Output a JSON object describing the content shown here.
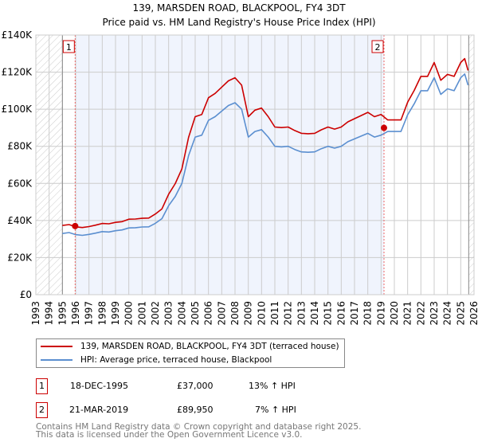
{
  "title_line1": "139, MARSDEN ROAD, BLACKPOOL, FY4 3DT",
  "title_line2": "Price paid vs. HM Land Registry's House Price Index (HPI)",
  "chart_data": {
    "type": "line",
    "title": "139, MARSDEN ROAD, BLACKPOOL, FY4 3DT — Price paid vs. HM Land Registry's House Price Index (HPI)",
    "xlim": [
      1993,
      2026
    ],
    "ylim": [
      0,
      140000
    ],
    "yticks": [
      0,
      20000,
      40000,
      60000,
      80000,
      100000,
      120000,
      140000
    ],
    "ytick_labels": [
      "£0",
      "£20K",
      "£40K",
      "£60K",
      "£80K",
      "£100K",
      "£120K",
      "£140K"
    ],
    "xtick_labels": [
      "1993",
      "1994",
      "1995",
      "1996",
      "1997",
      "1998",
      "1999",
      "2000",
      "2001",
      "2002",
      "2003",
      "2004",
      "2005",
      "2006",
      "2007",
      "2008",
      "2009",
      "2010",
      "2011",
      "2012",
      "2013",
      "2014",
      "2015",
      "2016",
      "2017",
      "2018",
      "2019",
      "2020",
      "2021",
      "2022",
      "2023",
      "2024",
      "2025",
      "2026"
    ],
    "grid": true,
    "legend_position": "below",
    "x": [
      1995.0,
      1995.5,
      1996.0,
      1996.5,
      1997.0,
      1997.5,
      1998.0,
      1998.5,
      1999.0,
      1999.5,
      2000.0,
      2000.5,
      2001.0,
      2001.5,
      2002.0,
      2002.5,
      2003.0,
      2003.5,
      2004.0,
      2004.5,
      2005.0,
      2005.5,
      2006.0,
      2006.5,
      2007.0,
      2007.5,
      2008.0,
      2008.5,
      2009.0,
      2009.5,
      2010.0,
      2010.5,
      2011.0,
      2011.5,
      2012.0,
      2012.5,
      2013.0,
      2013.5,
      2014.0,
      2014.5,
      2015.0,
      2015.5,
      2016.0,
      2016.5,
      2017.0,
      2017.5,
      2018.0,
      2018.5,
      2019.0,
      2019.5,
      2020.0,
      2020.5,
      2021.0,
      2021.5,
      2022.0,
      2022.5,
      2023.0,
      2023.5,
      2024.0,
      2024.5,
      2025.0,
      2025.3,
      2025.55
    ],
    "series": [
      {
        "name": "139, MARSDEN ROAD, BLACKPOOL, FY4 3DT (terraced house)",
        "color": "#cc0000",
        "values": [
          37300,
          37800,
          36600,
          36200,
          36700,
          37500,
          38400,
          38200,
          39000,
          39400,
          40700,
          40800,
          41200,
          41300,
          43500,
          46300,
          54200,
          59900,
          67800,
          84800,
          96000,
          97200,
          106200,
          108500,
          111900,
          115300,
          117000,
          113000,
          96000,
          99500,
          100600,
          96000,
          90400,
          90100,
          90400,
          88500,
          87000,
          86800,
          87000,
          88900,
          90400,
          89300,
          90400,
          93200,
          94900,
          96600,
          98300,
          96000,
          97200,
          94200,
          94200,
          94200,
          103800,
          110200,
          117700,
          117700,
          125200,
          115600,
          118800,
          117700,
          125200,
          127300,
          120900
        ]
      },
      {
        "name": "HPI: Average price, terraced house, Blackpool",
        "color": "#5b8fd0",
        "values": [
          33000,
          33500,
          32400,
          32000,
          32500,
          33200,
          34000,
          33800,
          34500,
          34900,
          36000,
          36100,
          36500,
          36600,
          38500,
          41000,
          48000,
          53000,
          60000,
          75000,
          85000,
          86000,
          94000,
          96000,
          99000,
          102000,
          103500,
          100000,
          85000,
          88000,
          89000,
          85000,
          80000,
          79700,
          80000,
          78300,
          77000,
          76800,
          77000,
          78700,
          80000,
          79000,
          80000,
          82500,
          84000,
          85500,
          87000,
          85000,
          86000,
          88000,
          88000,
          88000,
          97000,
          103000,
          110000,
          110000,
          117000,
          108000,
          111000,
          110000,
          117000,
          119000,
          113000
        ]
      }
    ],
    "sales": [
      {
        "id": "1",
        "x": 1995.96,
        "price": 37000,
        "date": "18-DEC-1995",
        "price_label": "£37,000",
        "hpi_delta": "13% ↑ HPI"
      },
      {
        "id": "2",
        "x": 2019.22,
        "price": 89950,
        "date": "21-MAR-2019",
        "price_label": "£89,950",
        "hpi_delta": "7% ↑ HPI"
      }
    ],
    "hatched_before": 1995.0,
    "hatched_after": 2025.6
  },
  "legend": {
    "property": "139, MARSDEN ROAD, BLACKPOOL, FY4 3DT (terraced house)",
    "hpi": "HPI: Average price, terraced house, Blackpool"
  },
  "footer": {
    "line1": "Contains HM Land Registry data © Crown copyright and database right 2025.",
    "line2": "This data is licensed under the Open Government Licence v3.0."
  }
}
